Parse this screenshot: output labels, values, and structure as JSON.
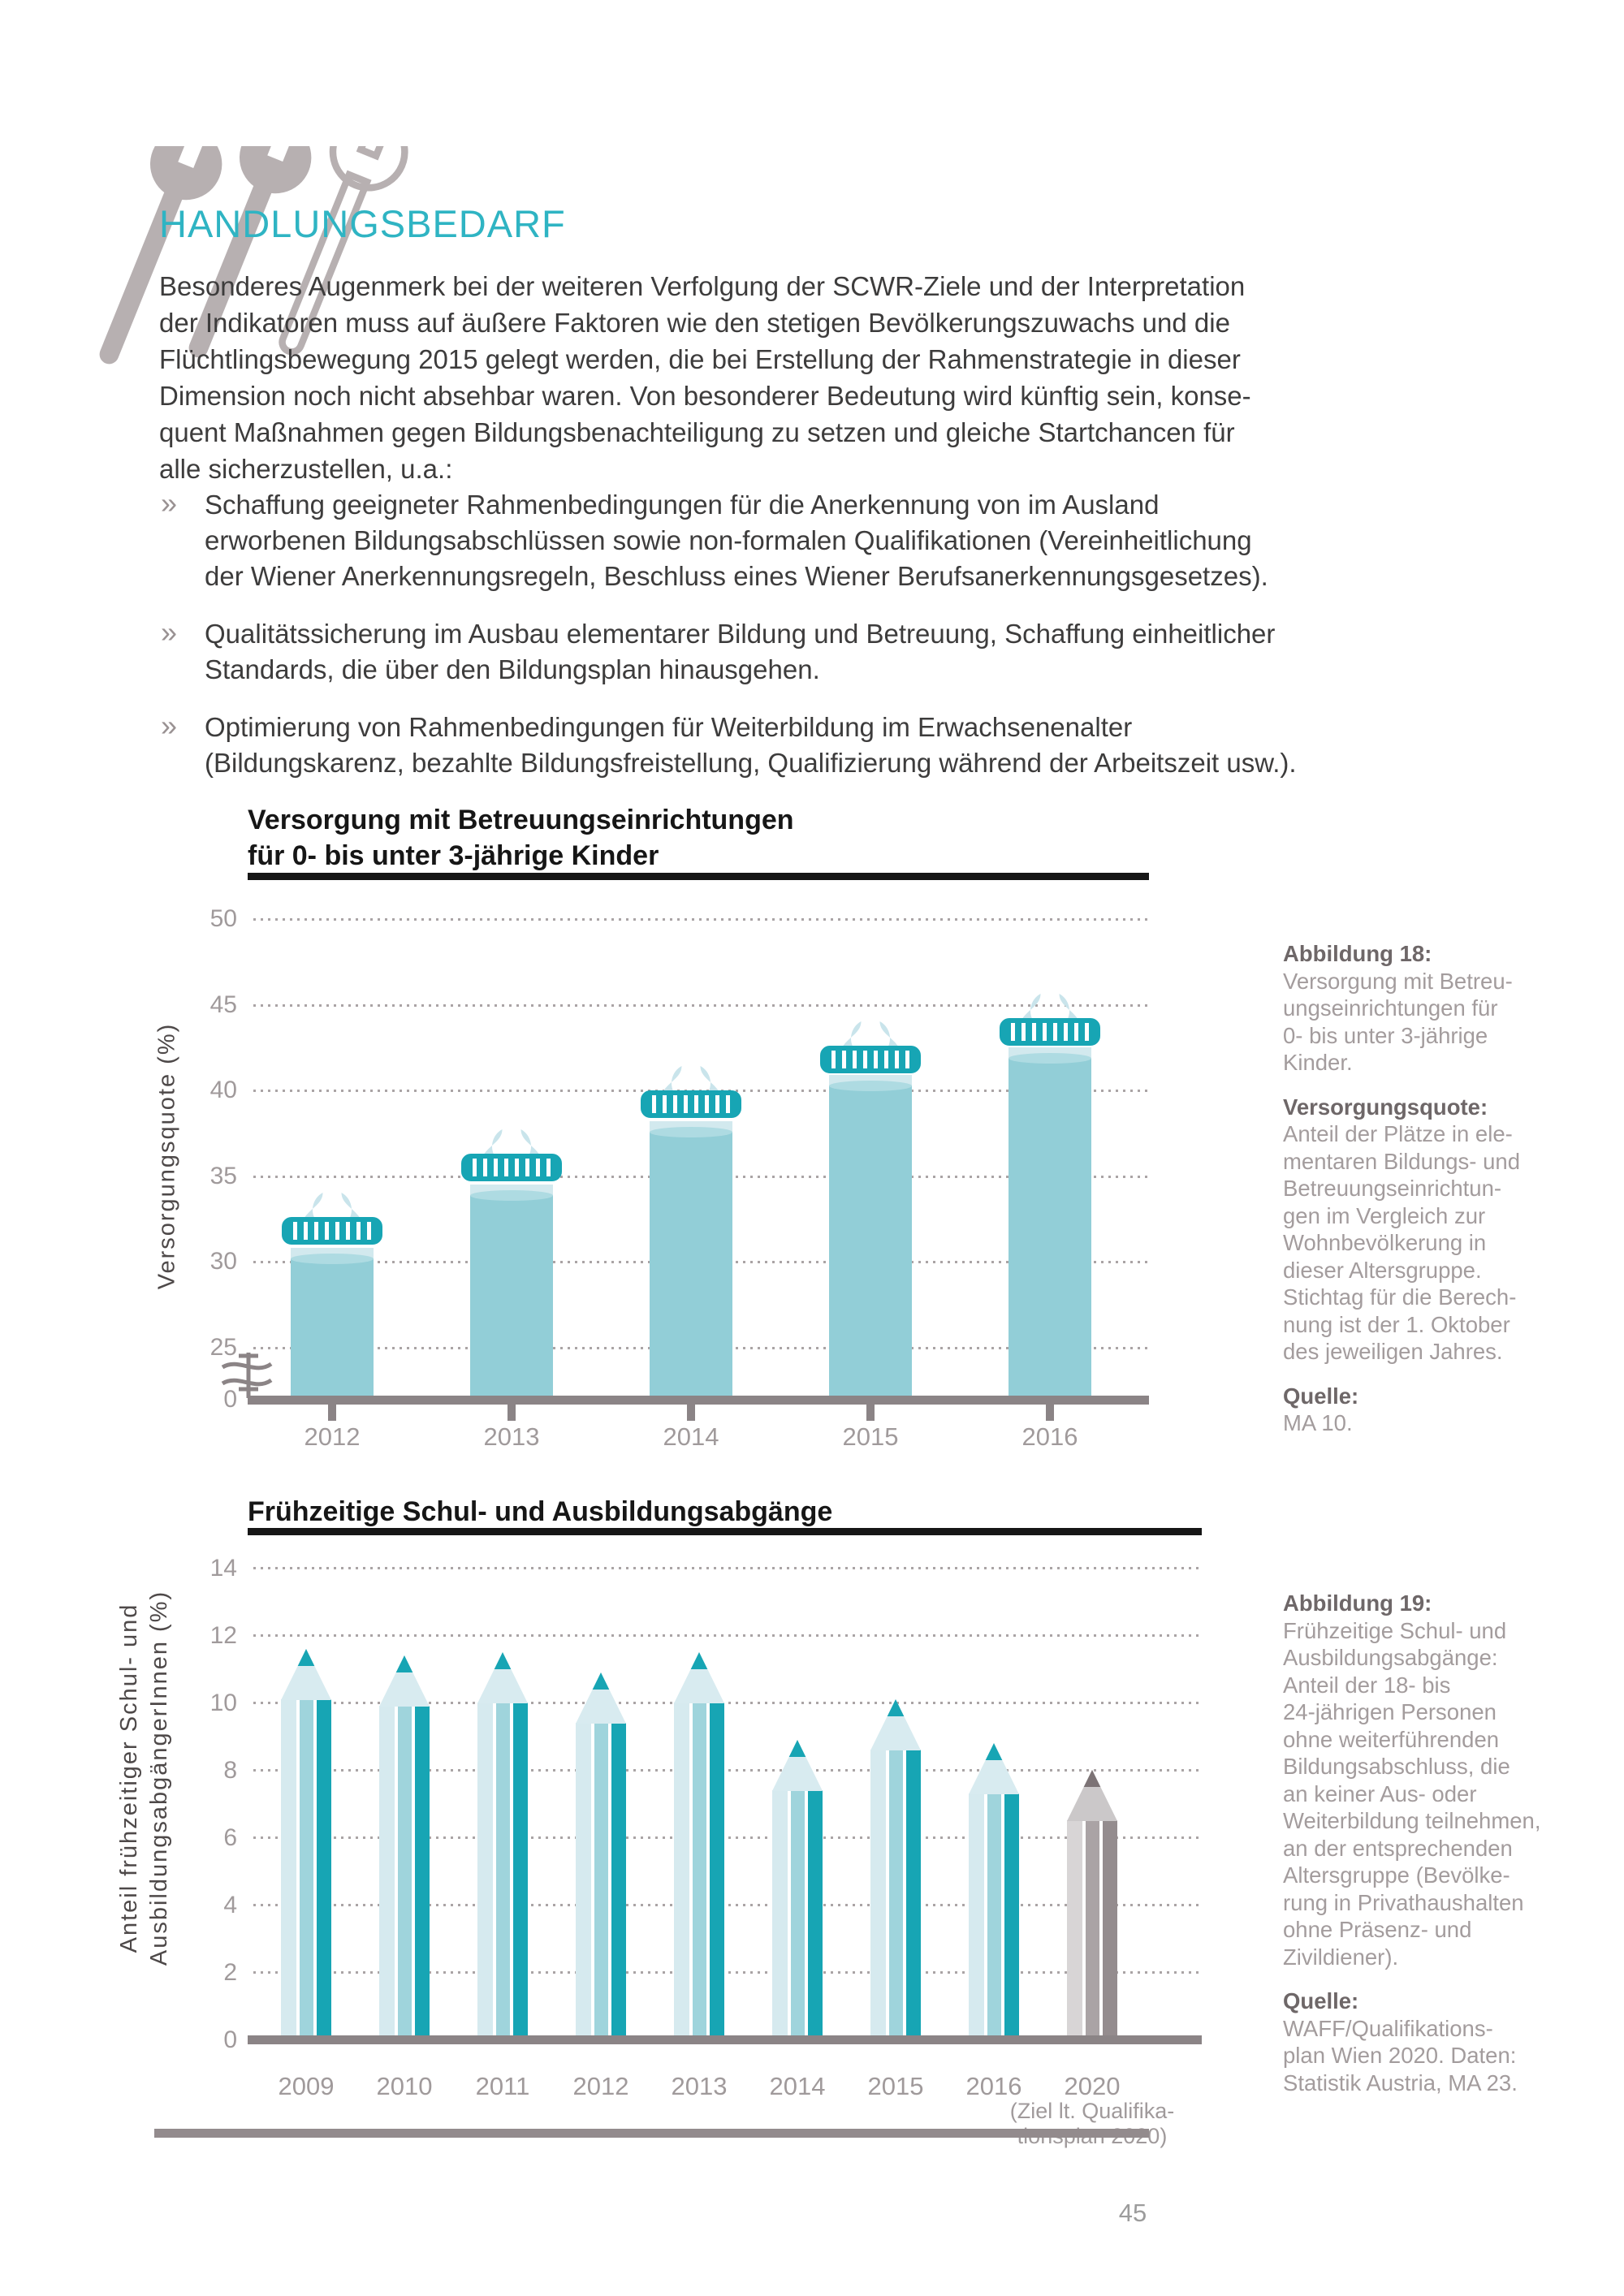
{
  "page": {
    "number": "45"
  },
  "header": {
    "title": "HANDLUNGSBEDARF",
    "icon": "three-wrenches"
  },
  "intro": {
    "lines": [
      "Besonderes Augenmerk bei der weiteren Verfolgung der SCWR-Ziele und der Interpretation",
      "der Indikatoren muss auf äußere Faktoren wie den stetigen Bevölkerungszuwachs und die",
      "Flüchtlingsbewegung 2015 gelegt werden, die bei Erstellung der Rahmenstrategie in dieser",
      "Dimension noch nicht absehbar waren. Von besonderer Bedeutung wird künftig sein, konse-",
      "quent Maßnahmen gegen Bildungsbenachteiligung zu setzen und gleiche Startchancen für",
      "alle sicherzustellen, u.a.:"
    ]
  },
  "bullets": {
    "marker": "»",
    "items": [
      {
        "lines": [
          "Schaffung geeigneter Rahmenbedingungen für die Anerkennung von im Ausland",
          "erworbenen Bildungsabschlüssen sowie non-formalen Qualifikationen (Vereinheitlichung",
          "der Wiener Anerkennungsregeln, Beschluss eines Wiener Berufsanerkennungsgesetzes)."
        ]
      },
      {
        "lines": [
          "Qualitätssicherung im Ausbau elementarer Bildung und Betreuung, Schaffung einheitlicher",
          "Standards, die über den Bildungsplan hinausgehen."
        ]
      },
      {
        "lines": [
          "Optimierung von Rahmenbedingungen für Weiterbildung im Erwachsenenalter",
          "(Bildungskarenz, bezahlte Bildungsfreistellung, Qualifizierung während der Arbeitszeit usw.)."
        ]
      }
    ]
  },
  "chart_data": [
    {
      "type": "bar",
      "style": "baby-bottle pictogram bars",
      "title_lines": [
        "Versorgung mit Betreuungseinrichtungen",
        "für 0- bis unter 3-jährige Kinder"
      ],
      "ylabel": "Versorgungsquote (%)",
      "categories": [
        "2012",
        "2013",
        "2014",
        "2015",
        "2016"
      ],
      "values": [
        32.6,
        36.3,
        40.0,
        42.6,
        44.2
      ],
      "fill_level_pct": [
        30.2,
        33.9,
        37.6,
        40.3,
        41.9
      ],
      "yticks": [
        50,
        45,
        40,
        35,
        30,
        25,
        0
      ],
      "ylim": [
        0,
        50
      ],
      "axis_break_between": [
        0,
        25
      ],
      "grid": "dotted horizontal"
    },
    {
      "type": "bar",
      "style": "pencil pictogram bars",
      "title": "Frühzeitige Schul- und Ausbildungsabgänge",
      "ylabel_lines": [
        "Anteil frühzeitiger Schul- und",
        "AusbildungsabgängerInnen (%)"
      ],
      "categories": [
        "2009",
        "2010",
        "2011",
        "2012",
        "2013",
        "2014",
        "2015",
        "2016",
        "2020"
      ],
      "values": [
        11.6,
        11.4,
        11.5,
        10.9,
        11.5,
        8.9,
        10.1,
        8.8,
        8.0
      ],
      "tip_height_pct": 1.5,
      "last_category_note_lines": [
        "(Ziel lt. Qualifika-",
        "tionsplan 2020)"
      ],
      "last_category_style": "gray",
      "yticks": [
        14,
        12,
        10,
        8,
        6,
        4,
        2,
        0
      ],
      "ylim": [
        0,
        14
      ],
      "grid": "dotted horizontal"
    }
  ],
  "sidebar_figure18": {
    "blocks": [
      {
        "heading": "Abbildung 18:",
        "lines": [
          "Versorgung mit Betreu-",
          "ungseinrichtungen für",
          "0- bis unter 3-jährige",
          "Kinder."
        ]
      },
      {
        "heading": "Versorgungsquote:",
        "lines": [
          "Anteil der Plätze in ele-",
          "mentaren Bildungs- und",
          "Betreuungseinrichtun-",
          "gen im Vergleich zur",
          "Wohnbevölkerung in",
          "dieser Altersgruppe.",
          "Stichtag für die Berech-",
          "nung ist der 1. Oktober",
          "des jeweiligen Jahres."
        ]
      },
      {
        "heading": "Quelle:",
        "lines": [
          "MA 10."
        ]
      }
    ]
  },
  "sidebar_figure19": {
    "blocks": [
      {
        "heading": "Abbildung 19:",
        "lines": [
          "Frühzeitige Schul- und",
          "Ausbildungsabgänge:",
          "Anteil der 18- bis",
          "24-jährigen Personen",
          "ohne weiterführenden",
          "Bildungsabschluss, die",
          "an keiner Aus- oder",
          "Weiterbildung teilnehmen,",
          "an der entsprechenden",
          "Altersgruppe (Bevölke-",
          "rung in Privathaushalten",
          "ohne Präsenz- und",
          "Zivildiener)."
        ]
      },
      {
        "heading": "Quelle:",
        "lines": [
          "WAFF/Qualifikations-",
          "plan Wien 2020. Daten:",
          "Statistik Austria, MA 23."
        ]
      }
    ]
  },
  "colors": {
    "title-teal": "#2fb4c3",
    "teal": "#17a5b4",
    "teal-mid": "#9fd4dc",
    "pale": "#d6eaef",
    "liquid": "#92ced7",
    "meniscus": "#aedbe2",
    "band": "#d2e9ee",
    "nipple": "#c9e4eb",
    "wood": "#d8ebf0",
    "gray-light": "#d8d5d6",
    "gray-mid": "#aaa3a5",
    "gray-dark": "#948c8e",
    "gray-wood": "#cbc8c9",
    "gray-lead": "#7c7375",
    "axis": "#8b8486",
    "dot": "#aaa4a5",
    "tick-text": "#a09a9b",
    "side-heading": "#6e6768",
    "side-text": "#a39c9d",
    "icon-gray": "#b7b0b1",
    "text": "#3d3c3c",
    "marker": "#9a9293"
  }
}
